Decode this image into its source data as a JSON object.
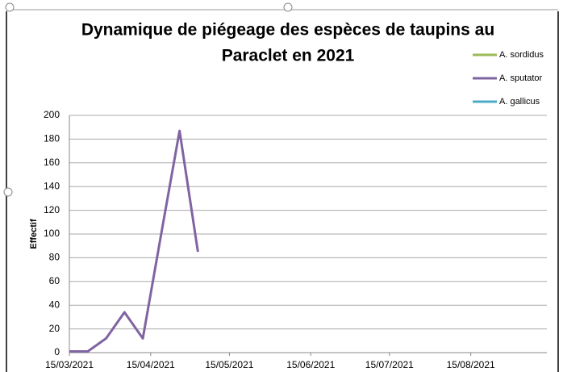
{
  "chart_data": {
    "type": "line",
    "title": [
      "Dynamique de piégeage des espèces de taupins au",
      "Paraclet en 2021"
    ],
    "y_label": "Effectif",
    "x": [
      "15/03/2021",
      "22/03/2021",
      "29/03/2021",
      "05/04/2021",
      "12/04/2021",
      "19/04/2021",
      "26/04/2021",
      "03/05/2021"
    ],
    "series": [
      {
        "name": "A. sordidus",
        "color": "#9bbb59",
        "values": [
          null,
          null,
          null,
          null,
          null,
          null,
          null,
          null
        ]
      },
      {
        "name": "A. sputator",
        "color": "#8064a2",
        "values": [
          1,
          1,
          12,
          34,
          12,
          100,
          187,
          85
        ]
      },
      {
        "name": "A. gallicus",
        "color": "#4bacc6",
        "values": [
          null,
          null,
          null,
          null,
          null,
          null,
          null,
          null
        ]
      }
    ],
    "xlim": [
      "15/03/2021",
      "13/09/2021"
    ],
    "xticks": [
      "15/03/2021",
      "15/04/2021",
      "15/05/2021",
      "15/06/2021",
      "15/07/2021",
      "15/08/2021"
    ],
    "ylim": [
      0,
      200
    ],
    "yticks": [
      0,
      20,
      40,
      60,
      80,
      100,
      120,
      140,
      160,
      180,
      200
    ],
    "grid": true,
    "legend": "top-right"
  }
}
